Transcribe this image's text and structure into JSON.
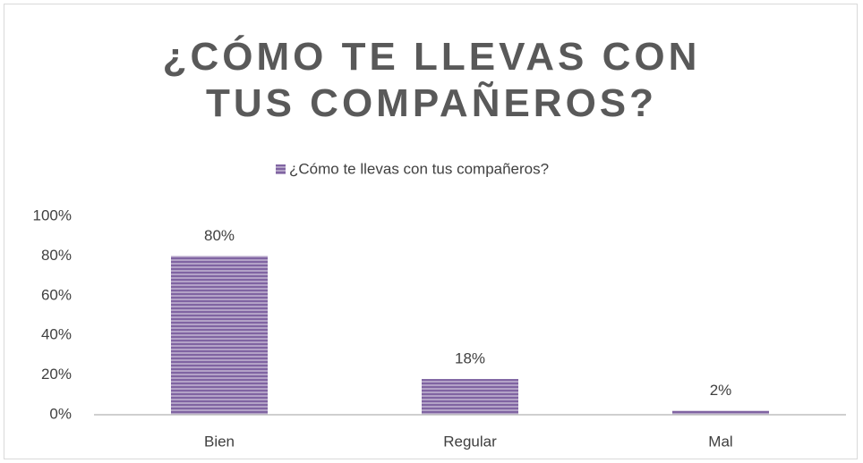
{
  "chart_data": {
    "type": "bar",
    "title": "¿CÓMO TE LLEVAS CON TUS COMPAÑEROS?",
    "categories": [
      "Bien",
      "Regular",
      "Mal"
    ],
    "series": [
      {
        "name": "¿Cómo te llevas con tus compañeros?",
        "color": "#8064a2",
        "values": [
          80,
          18,
          2
        ],
        "value_labels": [
          "80%",
          "18%",
          "2%"
        ]
      }
    ],
    "ylim": [
      0,
      100
    ],
    "yticks": [
      {
        "value": 0,
        "label": "0%"
      },
      {
        "value": 20,
        "label": "20%"
      },
      {
        "value": 40,
        "label": "40%"
      },
      {
        "value": 60,
        "label": "60%"
      },
      {
        "value": 80,
        "label": "80%"
      },
      {
        "value": 100,
        "label": "100%"
      }
    ],
    "legend": "top",
    "grid": false
  }
}
